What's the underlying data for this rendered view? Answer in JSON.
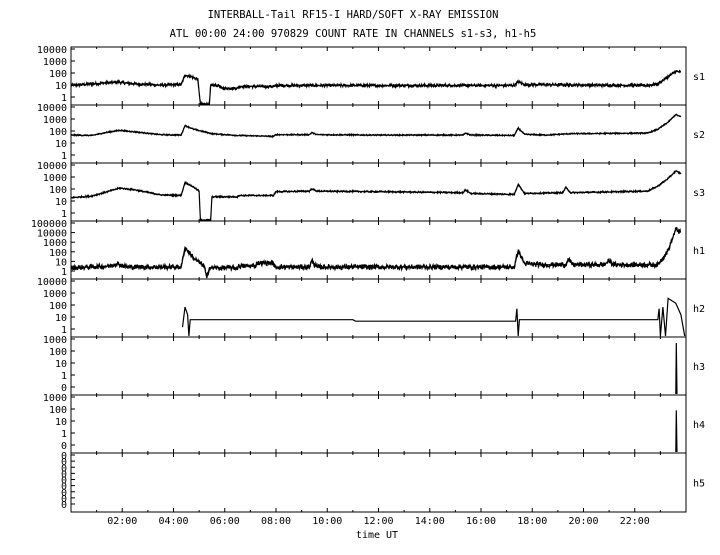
{
  "title": "INTERBALL-Tail RF15-I HARD/SOFT X-RAY EMISSION",
  "subtitle": "ATL 00:00 24:00 970829  COUNT RATE IN CHANNELS s1-s3, h1-h5",
  "xlabel": "time UT",
  "chart_data": {
    "type": "line",
    "title": "INTERBALL-Tail RF15-I HARD/SOFT X-RAY EMISSION",
    "subtitle": "ATL 00:00 24:00 970829  COUNT RATE IN CHANNELS s1-s3, h1-h5",
    "xlabel": "time UT",
    "x_unit": "hours UT",
    "xlim": [
      0,
      24
    ],
    "x_ticks": [
      2,
      4,
      6,
      8,
      10,
      12,
      14,
      16,
      18,
      20,
      22
    ],
    "x_tick_labels": [
      "02:00",
      "04:00",
      "06:00",
      "08:00",
      "10:00",
      "12:00",
      "14:00",
      "16:00",
      "18:00",
      "20:00",
      "22:00"
    ],
    "y_scale": "log",
    "panels": [
      {
        "name": "s1",
        "yticks": [
          "10000",
          "1000",
          "100",
          "10",
          "1"
        ],
        "ylim": [
          1,
          20000
        ],
        "base": 30,
        "noise": 0.12,
        "points": [
          [
            0,
            30
          ],
          [
            1.2,
            45
          ],
          [
            1.8,
            55
          ],
          [
            2.5,
            40
          ],
          [
            3.5,
            32
          ],
          [
            4.3,
            35
          ],
          [
            4.45,
            200
          ],
          [
            4.7,
            150
          ],
          [
            4.95,
            90
          ],
          [
            5.05,
            1
          ],
          [
            5.25,
            1
          ],
          [
            5.4,
            1
          ],
          [
            5.45,
            30
          ],
          [
            5.8,
            30
          ],
          [
            5.85,
            18
          ],
          [
            6.5,
            18
          ],
          [
            6.55,
            25
          ],
          [
            7.95,
            25
          ],
          [
            8.0,
            30
          ],
          [
            17.3,
            30
          ],
          [
            17.45,
            60
          ],
          [
            17.7,
            35
          ],
          [
            22.5,
            30
          ],
          [
            22.9,
            40
          ],
          [
            23.3,
            150
          ],
          [
            23.6,
            400
          ],
          [
            23.8,
            350
          ]
        ]
      },
      {
        "name": "s2",
        "yticks": [
          "10000",
          "1000",
          "100",
          "10",
          "1"
        ],
        "ylim": [
          1,
          20000
        ],
        "base": 130,
        "noise": 0.05,
        "points": [
          [
            0,
            140
          ],
          [
            0.8,
            130
          ],
          [
            1.5,
            250
          ],
          [
            1.9,
            330
          ],
          [
            2.5,
            250
          ],
          [
            3.5,
            150
          ],
          [
            4.3,
            140
          ],
          [
            4.45,
            800
          ],
          [
            4.8,
            400
          ],
          [
            5.5,
            180
          ],
          [
            6.5,
            130
          ],
          [
            7.9,
            110
          ],
          [
            8.0,
            150
          ],
          [
            9.3,
            150
          ],
          [
            9.4,
            220
          ],
          [
            9.6,
            150
          ],
          [
            12.0,
            140
          ],
          [
            15.3,
            140
          ],
          [
            15.4,
            200
          ],
          [
            15.6,
            140
          ],
          [
            17.3,
            130
          ],
          [
            17.45,
            500
          ],
          [
            17.7,
            160
          ],
          [
            18.5,
            140
          ],
          [
            19.5,
            180
          ],
          [
            22.5,
            200
          ],
          [
            22.9,
            400
          ],
          [
            23.3,
            1500
          ],
          [
            23.6,
            6000
          ],
          [
            23.8,
            4000
          ]
        ]
      },
      {
        "name": "s3",
        "yticks": [
          "10000",
          "1000",
          "100",
          "10",
          "1"
        ],
        "ylim": [
          1,
          20000
        ],
        "base": 100,
        "noise": 0.06,
        "points": [
          [
            0,
            60
          ],
          [
            0.8,
            80
          ],
          [
            1.5,
            200
          ],
          [
            1.9,
            350
          ],
          [
            2.5,
            250
          ],
          [
            3.5,
            100
          ],
          [
            4.3,
            90
          ],
          [
            4.45,
            1000
          ],
          [
            4.8,
            400
          ],
          [
            5.0,
            200
          ],
          [
            5.05,
            1
          ],
          [
            5.3,
            1
          ],
          [
            5.45,
            1
          ],
          [
            5.5,
            70
          ],
          [
            6.5,
            70
          ],
          [
            6.55,
            90
          ],
          [
            7.9,
            90
          ],
          [
            8.0,
            180
          ],
          [
            9.3,
            200
          ],
          [
            9.4,
            300
          ],
          [
            9.6,
            200
          ],
          [
            12.0,
            180
          ],
          [
            15.3,
            150
          ],
          [
            15.4,
            250
          ],
          [
            15.6,
            130
          ],
          [
            17.3,
            110
          ],
          [
            17.45,
            700
          ],
          [
            17.7,
            130
          ],
          [
            19.2,
            150
          ],
          [
            19.3,
            400
          ],
          [
            19.5,
            150
          ],
          [
            22.5,
            200
          ],
          [
            22.9,
            500
          ],
          [
            23.3,
            2000
          ],
          [
            23.6,
            8000
          ],
          [
            23.8,
            5000
          ]
        ]
      },
      {
        "name": "h1",
        "yticks": [
          "100000",
          "10000",
          "1000",
          "100",
          "10",
          "1"
        ],
        "ylim": [
          1,
          200000
        ],
        "base": 12,
        "noise": 0.25,
        "points": [
          [
            0,
            10
          ],
          [
            1.5,
            15
          ],
          [
            1.8,
            25
          ],
          [
            2.2,
            12
          ],
          [
            4.3,
            12
          ],
          [
            4.45,
            1000
          ],
          [
            4.8,
            80
          ],
          [
            5.2,
            15
          ],
          [
            5.3,
            1
          ],
          [
            5.4,
            10
          ],
          [
            6.5,
            10
          ],
          [
            6.55,
            15
          ],
          [
            7.2,
            15
          ],
          [
            7.25,
            30
          ],
          [
            7.9,
            30
          ],
          [
            7.95,
            12
          ],
          [
            9.3,
            12
          ],
          [
            9.4,
            50
          ],
          [
            9.6,
            12
          ],
          [
            17.3,
            12
          ],
          [
            17.45,
            500
          ],
          [
            17.7,
            25
          ],
          [
            18.4,
            20
          ],
          [
            19.3,
            20
          ],
          [
            19.4,
            60
          ],
          [
            19.6,
            20
          ],
          [
            20.8,
            20
          ],
          [
            21.0,
            50
          ],
          [
            21.2,
            20
          ],
          [
            22.9,
            20
          ],
          [
            23.3,
            500
          ],
          [
            23.6,
            60000
          ],
          [
            23.8,
            30000
          ]
        ]
      },
      {
        "name": "h2",
        "yticks": [
          "10000",
          "1000",
          "100",
          "10",
          "1"
        ],
        "ylim": [
          1,
          20000
        ],
        "base": 0,
        "noise": 0,
        "points": [
          [
            4.35,
            5
          ],
          [
            4.45,
            200
          ],
          [
            4.55,
            50
          ],
          [
            4.6,
            1
          ],
          [
            4.65,
            20
          ],
          [
            11.0,
            20
          ],
          [
            11.1,
            15
          ],
          [
            17.35,
            15
          ],
          [
            17.4,
            150
          ],
          [
            17.45,
            1
          ],
          [
            17.5,
            20
          ],
          [
            22.9,
            20
          ],
          [
            22.95,
            150
          ],
          [
            23.0,
            1
          ],
          [
            23.1,
            200
          ],
          [
            23.2,
            1
          ],
          [
            23.3,
            1000
          ],
          [
            23.6,
            400
          ],
          [
            23.8,
            50
          ],
          [
            23.95,
            1
          ]
        ]
      },
      {
        "name": "h3",
        "yticks": [
          "1000",
          "100",
          "10",
          "1",
          "0"
        ],
        "ylim": [
          0.1,
          1000
        ],
        "base": 0,
        "noise": 0,
        "points": [
          [
            23.6,
            0.1
          ],
          [
            23.62,
            600
          ],
          [
            23.65,
            0.1
          ]
        ]
      },
      {
        "name": "h4",
        "yticks": [
          "1000",
          "100",
          "10",
          "1",
          "0"
        ],
        "ylim": [
          0.1,
          1000
        ],
        "base": 0,
        "noise": 0,
        "points": [
          [
            23.6,
            0.1
          ],
          [
            23.62,
            120
          ],
          [
            23.65,
            0.1
          ]
        ]
      },
      {
        "name": "h5",
        "yticks": [
          "0",
          "0",
          "0",
          "0",
          "0",
          "0",
          "0",
          "0",
          "0"
        ],
        "ylim": [
          0.1,
          1000
        ],
        "base": 0,
        "noise": 0,
        "points": []
      }
    ]
  }
}
